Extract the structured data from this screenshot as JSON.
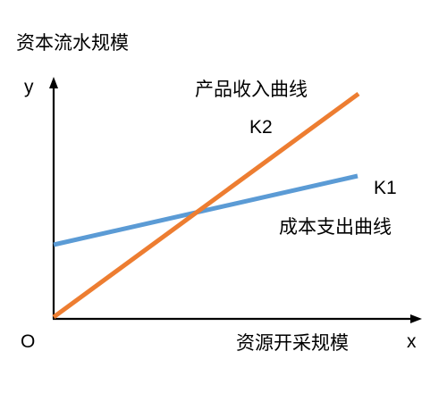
{
  "diagram": {
    "y_axis_title": "资本流水规模",
    "y_axis_letter": "y",
    "x_axis_title": "资源开采规模",
    "x_axis_letter": "x",
    "origin_label": "O",
    "lines": [
      {
        "name": "产品收入曲线",
        "slope_label": "K2",
        "color": "#ed7d31"
      },
      {
        "name": "成本支出曲线",
        "slope_label": "K1",
        "color": "#5b9bd5"
      }
    ],
    "axis_color": "#000000"
  }
}
